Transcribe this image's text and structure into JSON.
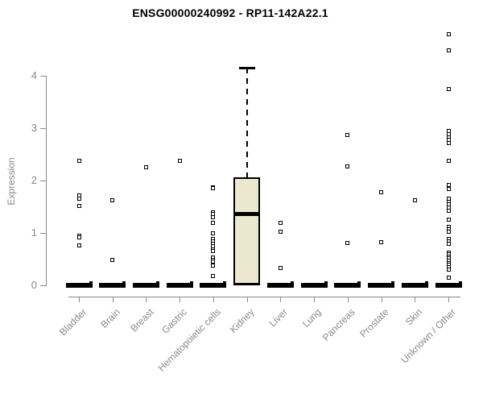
{
  "chart_data": {
    "type": "boxplot",
    "title": "ENSG00000240992 - RP11-142A22.1",
    "ylabel": "Expression",
    "xlabel": "",
    "yticks": [
      0,
      1,
      2,
      3,
      4
    ],
    "ylim": [
      0,
      4.9
    ],
    "grid": false,
    "legend": "none",
    "colors": {
      "box_fill": "#ece8cf",
      "box_stroke": "#000000",
      "axis": "#8a8a8a",
      "title": "#000000",
      "outlier_stroke": "#000000"
    },
    "categories": [
      "Bladder",
      "Brain",
      "Breast",
      "Gastric",
      "Hematopoietic cells",
      "Kidney",
      "Liver",
      "Lung",
      "Pancreas",
      "Prostate",
      "Skin",
      "Unknown / Other"
    ],
    "boxes": [
      {
        "category": "Bladder",
        "q1": 0,
        "median": 0,
        "q3": 0,
        "whisker_low": 0,
        "whisker_high": 0,
        "outliers": [
          2.37,
          1.72,
          1.65,
          1.52,
          0.95,
          0.91,
          0.76
        ]
      },
      {
        "category": "Brain",
        "q1": 0,
        "median": 0,
        "q3": 0,
        "whisker_low": 0,
        "whisker_high": 0,
        "outliers": [
          1.63,
          0.48
        ]
      },
      {
        "category": "Breast",
        "q1": 0,
        "median": 0,
        "q3": 0,
        "whisker_low": 0,
        "whisker_high": 0,
        "outliers": [
          2.26
        ]
      },
      {
        "category": "Gastric",
        "q1": 0,
        "median": 0,
        "q3": 0,
        "whisker_low": 0,
        "whisker_high": 0,
        "outliers": [
          2.38
        ]
      },
      {
        "category": "Hematopoietic cells",
        "q1": 0,
        "median": 0,
        "q3": 0,
        "whisker_low": 0,
        "whisker_high": 0,
        "outliers": [
          1.87,
          1.85,
          1.4,
          1.36,
          1.3,
          1.19,
          0.99,
          0.89,
          0.84,
          0.79,
          0.74,
          0.69,
          0.65,
          0.53,
          0.49,
          0.45,
          0.37,
          0.18
        ]
      },
      {
        "category": "Kidney",
        "q1": 0,
        "median": 1.37,
        "q3": 2.06,
        "whisker_low": 0,
        "whisker_high": 4.15,
        "outliers": []
      },
      {
        "category": "Liver",
        "q1": 0,
        "median": 0,
        "q3": 0,
        "whisker_low": 0,
        "whisker_high": 0,
        "outliers": [
          1.19,
          1.02,
          0.33
        ]
      },
      {
        "category": "Lung",
        "q1": 0,
        "median": 0,
        "q3": 0,
        "whisker_low": 0,
        "whisker_high": 0,
        "outliers": []
      },
      {
        "category": "Pancreas",
        "q1": 0,
        "median": 0,
        "q3": 0,
        "whisker_low": 0,
        "whisker_high": 0,
        "outliers": [
          2.87,
          2.27,
          0.81
        ]
      },
      {
        "category": "Prostate",
        "q1": 0,
        "median": 0,
        "q3": 0,
        "whisker_low": 0,
        "whisker_high": 0,
        "outliers": [
          1.77,
          0.83
        ]
      },
      {
        "category": "Skin",
        "q1": 0,
        "median": 0,
        "q3": 0,
        "whisker_low": 0,
        "whisker_high": 0,
        "outliers": [
          1.63
        ]
      },
      {
        "category": "Unknown / Other",
        "q1": 0,
        "median": 0,
        "q3": 0,
        "whisker_low": 0,
        "whisker_high": 0,
        "outliers": [
          4.8,
          4.49,
          3.74,
          2.94,
          2.89,
          2.83,
          2.77,
          2.72,
          2.37,
          1.91,
          1.84,
          1.65,
          1.6,
          1.55,
          1.49,
          1.43,
          1.26,
          1.11,
          1.07,
          1.03,
          0.88,
          0.84,
          0.79,
          0.63,
          0.59,
          0.55,
          0.51,
          0.47,
          0.43,
          0.39,
          0.35,
          0.3,
          0.14
        ]
      }
    ]
  }
}
